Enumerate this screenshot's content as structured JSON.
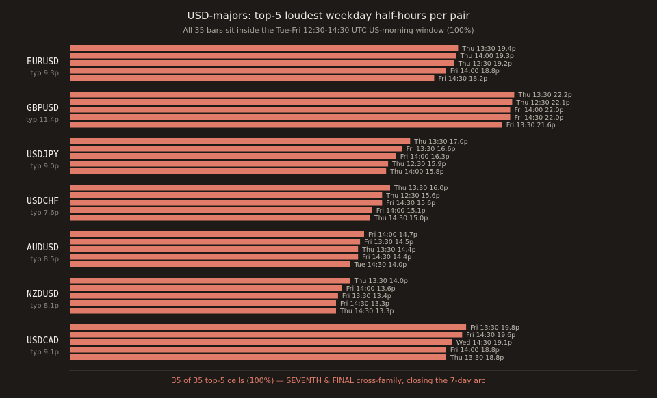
{
  "colors": {
    "background": "#1e1a17",
    "bar": "#e27c6a",
    "title": "#ece6df",
    "subtitle": "#aaa39c",
    "pair_label": "#f1ede8",
    "typ_label": "#8d8680",
    "bar_label": "#bdb6ae",
    "footer": "#e27c6a",
    "axis": "#4a4440"
  },
  "chart_data": {
    "type": "bar",
    "orientation": "horizontal",
    "title": "USD-majors: top-5 loudest weekday half-hours per pair",
    "subtitle": "All 35 bars sit inside the Tue-Fri 12:30-14:30 UTC US-morning window (100%)",
    "footer": "35 of 35 top-5 cells (100%) — SEVENTH & FINAL cross-family, closing the 7-day arc",
    "xlim": [
      0,
      23.5
    ],
    "value_unit": "p",
    "groups": [
      {
        "pair": "EURUSD",
        "typ": "typ 9.3p",
        "bars": [
          {
            "slot": "Thu 13:30",
            "value": 19.4
          },
          {
            "slot": "Thu 14:00",
            "value": 19.3
          },
          {
            "slot": "Thu 12:30",
            "value": 19.2
          },
          {
            "slot": "Fri 14:00",
            "value": 18.8
          },
          {
            "slot": "Fri 14:30",
            "value": 18.2
          }
        ]
      },
      {
        "pair": "GBPUSD",
        "typ": "typ 11.4p",
        "bars": [
          {
            "slot": "Thu 13:30",
            "value": 22.2
          },
          {
            "slot": "Thu 12:30",
            "value": 22.1
          },
          {
            "slot": "Fri 14:00",
            "value": 22.0
          },
          {
            "slot": "Fri 14:30",
            "value": 22.0
          },
          {
            "slot": "Fri 13:30",
            "value": 21.6
          }
        ]
      },
      {
        "pair": "USDJPY",
        "typ": "typ 9.0p",
        "bars": [
          {
            "slot": "Thu 13:30",
            "value": 17.0
          },
          {
            "slot": "Fri 13:30",
            "value": 16.6
          },
          {
            "slot": "Fri 14:00",
            "value": 16.3
          },
          {
            "slot": "Thu 12:30",
            "value": 15.9
          },
          {
            "slot": "Thu 14:00",
            "value": 15.8
          }
        ]
      },
      {
        "pair": "USDCHF",
        "typ": "typ 7.6p",
        "bars": [
          {
            "slot": "Thu 13:30",
            "value": 16.0
          },
          {
            "slot": "Thu 12:30",
            "value": 15.6
          },
          {
            "slot": "Fri 14:30",
            "value": 15.6
          },
          {
            "slot": "Fri 14:00",
            "value": 15.1
          },
          {
            "slot": "Thu 14:30",
            "value": 15.0
          }
        ]
      },
      {
        "pair": "AUDUSD",
        "typ": "typ 8.5p",
        "bars": [
          {
            "slot": "Fri 14:00",
            "value": 14.7
          },
          {
            "slot": "Fri 13:30",
            "value": 14.5
          },
          {
            "slot": "Thu 13:30",
            "value": 14.4
          },
          {
            "slot": "Fri 14:30",
            "value": 14.4
          },
          {
            "slot": "Tue 14:30",
            "value": 14.0
          }
        ]
      },
      {
        "pair": "NZDUSD",
        "typ": "typ 8.1p",
        "bars": [
          {
            "slot": "Thu 13:30",
            "value": 14.0
          },
          {
            "slot": "Fri 14:00",
            "value": 13.6
          },
          {
            "slot": "Fri 13:30",
            "value": 13.4
          },
          {
            "slot": "Fri 14:30",
            "value": 13.3
          },
          {
            "slot": "Thu 14:30",
            "value": 13.3
          }
        ]
      },
      {
        "pair": "USDCAD",
        "typ": "typ 9.1p",
        "bars": [
          {
            "slot": "Fri 13:30",
            "value": 19.8
          },
          {
            "slot": "Fri 14:30",
            "value": 19.6
          },
          {
            "slot": "Wed 14:30",
            "value": 19.1
          },
          {
            "slot": "Fri 14:00",
            "value": 18.8
          },
          {
            "slot": "Thu 13:30",
            "value": 18.8
          }
        ]
      }
    ]
  }
}
